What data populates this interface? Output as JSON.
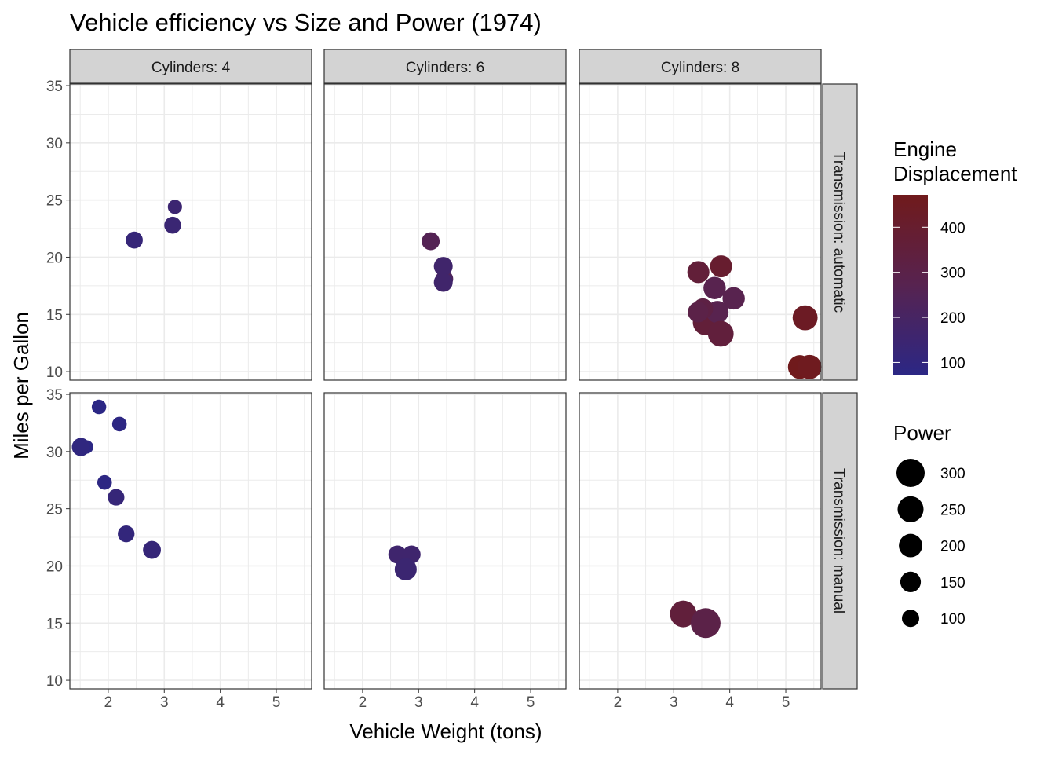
{
  "chart_data": {
    "type": "scatter",
    "title": "Vehicle efficiency vs Size and Power (1974)",
    "xlabel": "Vehicle Weight (tons)",
    "ylabel": "Miles per Gallon",
    "xlim": [
      1.315,
      5.63
    ],
    "ylim": [
      9.25,
      35.14
    ],
    "x_ticks": [
      2,
      3,
      4,
      5
    ],
    "y_ticks": [
      10,
      15,
      20,
      25,
      30,
      35
    ],
    "grid": true,
    "facet_columns": [
      "Cylinders: 4",
      "Cylinders: 6",
      "Cylinders: 8"
    ],
    "facet_rows": [
      "Transmission: automatic",
      "Transmission: manual"
    ],
    "color_legend": {
      "title_lines": [
        "Engine",
        "Displacement"
      ],
      "ticks": [
        100,
        200,
        300,
        400
      ],
      "range": [
        71.1,
        472
      ],
      "low": "#2b2785",
      "mid": "#572350",
      "high": "#701a1c"
    },
    "size_legend": {
      "title": "Power",
      "breaks": [
        300,
        250,
        200,
        150,
        100
      ],
      "range": [
        52,
        335
      ]
    },
    "legend_position": "right",
    "fields": [
      "weight",
      "mpg",
      "facet_column",
      "facet_row",
      "displacement",
      "power"
    ],
    "points": [
      [
        2.62,
        21,
        1,
        1,
        160,
        110
      ],
      [
        2.875,
        21,
        1,
        1,
        160,
        110
      ],
      [
        2.32,
        22.8,
        0,
        1,
        108,
        93
      ],
      [
        3.215,
        21.4,
        1,
        0,
        258,
        110
      ],
      [
        3.44,
        18.7,
        2,
        0,
        360,
        175
      ],
      [
        3.46,
        18.1,
        1,
        0,
        225,
        105
      ],
      [
        3.57,
        14.3,
        2,
        0,
        360,
        245
      ],
      [
        3.19,
        24.4,
        0,
        0,
        146.7,
        62
      ],
      [
        3.15,
        22.8,
        0,
        0,
        140.8,
        95
      ],
      [
        3.44,
        19.2,
        1,
        0,
        167.6,
        123
      ],
      [
        3.44,
        17.8,
        1,
        0,
        167.6,
        123
      ],
      [
        4.07,
        16.4,
        2,
        0,
        275.8,
        180
      ],
      [
        3.73,
        17.3,
        2,
        0,
        275.8,
        180
      ],
      [
        3.78,
        15.2,
        2,
        0,
        275.8,
        180
      ],
      [
        5.25,
        10.4,
        2,
        0,
        472,
        205
      ],
      [
        5.424,
        10.4,
        2,
        0,
        460,
        215
      ],
      [
        5.345,
        14.7,
        2,
        0,
        440,
        230
      ],
      [
        2.2,
        32.4,
        0,
        1,
        78.7,
        66
      ],
      [
        1.615,
        30.4,
        0,
        1,
        75.7,
        52
      ],
      [
        1.835,
        33.9,
        0,
        1,
        71.1,
        65
      ],
      [
        2.465,
        21.5,
        0,
        0,
        120.1,
        97
      ],
      [
        3.52,
        15.5,
        2,
        0,
        318,
        150
      ],
      [
        3.435,
        15.2,
        2,
        0,
        304,
        150
      ],
      [
        3.84,
        13.3,
        2,
        0,
        350,
        245
      ],
      [
        3.845,
        19.2,
        2,
        0,
        400,
        175
      ],
      [
        1.935,
        27.3,
        0,
        1,
        79,
        66
      ],
      [
        2.14,
        26,
        0,
        1,
        120.3,
        91
      ],
      [
        1.513,
        30.4,
        0,
        1,
        95.1,
        113
      ],
      [
        3.17,
        15.8,
        2,
        1,
        351,
        264
      ],
      [
        2.77,
        19.7,
        1,
        1,
        145,
        175
      ],
      [
        3.57,
        15,
        2,
        1,
        301,
        335
      ],
      [
        2.78,
        21.4,
        0,
        1,
        121,
        109
      ]
    ]
  }
}
